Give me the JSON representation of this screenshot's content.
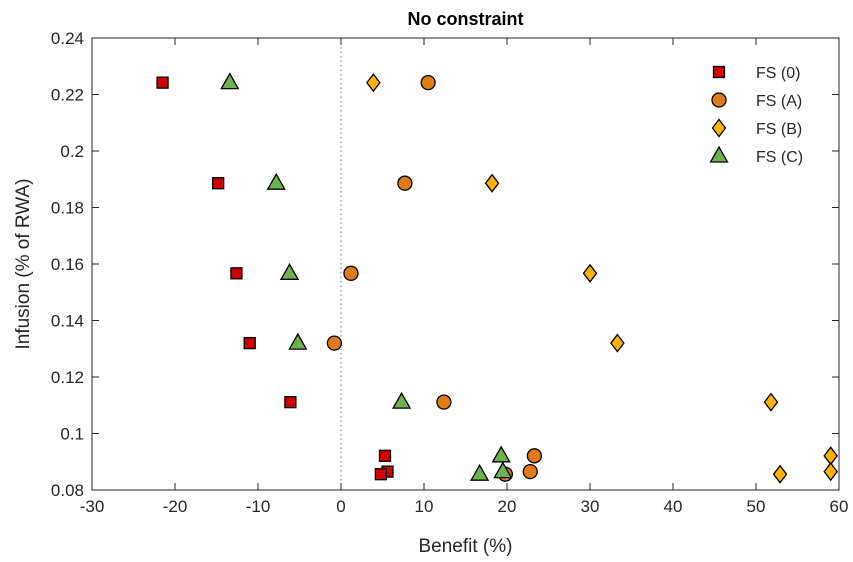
{
  "chart_data": {
    "type": "scatter",
    "title": "No constraint",
    "xlabel": "Benefit (%)",
    "ylabel": "Infusion (% of RWA)",
    "xlim": [
      -30,
      60
    ],
    "ylim": [
      0.08,
      0.24
    ],
    "xticks": [
      -30,
      -20,
      -10,
      0,
      10,
      20,
      30,
      40,
      50,
      60
    ],
    "yticks": [
      0.08,
      0.1,
      0.12,
      0.14,
      0.16,
      0.18,
      0.2,
      0.22,
      0.24
    ],
    "xtick_labels": [
      "-30",
      "-20",
      "-10",
      "0",
      "10",
      "20",
      "30",
      "40",
      "50",
      "60"
    ],
    "ytick_labels": [
      "0.08",
      "0.1",
      "0.12",
      "0.14",
      "0.16",
      "0.18",
      "0.2",
      "0.22",
      "0.24"
    ],
    "reference_line_x": 0,
    "grid": false,
    "legend_position": "top-right",
    "series": [
      {
        "name": "FS (0)",
        "marker": "square",
        "color": "#d10000",
        "points": [
          {
            "x": -21.5,
            "y": 0.2242
          },
          {
            "x": -14.8,
            "y": 0.1886
          },
          {
            "x": -12.6,
            "y": 0.1567
          },
          {
            "x": -11.0,
            "y": 0.132
          },
          {
            "x": -6.1,
            "y": 0.1111
          },
          {
            "x": 5.3,
            "y": 0.0921
          },
          {
            "x": 5.6,
            "y": 0.0865
          },
          {
            "x": 4.8,
            "y": 0.0856
          }
        ]
      },
      {
        "name": "FS (A)",
        "marker": "circle",
        "color": "#e07b17",
        "points": [
          {
            "x": 10.5,
            "y": 0.2242
          },
          {
            "x": 7.7,
            "y": 0.1886
          },
          {
            "x": 1.2,
            "y": 0.1567
          },
          {
            "x": -0.8,
            "y": 0.132
          },
          {
            "x": 12.4,
            "y": 0.1111
          },
          {
            "x": 23.3,
            "y": 0.0921
          },
          {
            "x": 22.8,
            "y": 0.0865
          },
          {
            "x": 19.8,
            "y": 0.0856
          }
        ]
      },
      {
        "name": "FS (B)",
        "marker": "diamond",
        "color": "#ffb300",
        "points": [
          {
            "x": 3.9,
            "y": 0.2242
          },
          {
            "x": 18.2,
            "y": 0.1886
          },
          {
            "x": 30.0,
            "y": 0.1567
          },
          {
            "x": 33.3,
            "y": 0.132
          },
          {
            "x": 51.8,
            "y": 0.1111
          },
          {
            "x": 59.0,
            "y": 0.0921
          },
          {
            "x": 59.0,
            "y": 0.0865
          },
          {
            "x": 52.9,
            "y": 0.0856
          }
        ]
      },
      {
        "name": "FS (C)",
        "marker": "triangle",
        "color": "#6fb04f",
        "points": [
          {
            "x": -13.4,
            "y": 0.2242
          },
          {
            "x": -7.8,
            "y": 0.1886
          },
          {
            "x": -6.2,
            "y": 0.1567
          },
          {
            "x": -5.2,
            "y": 0.132
          },
          {
            "x": 7.3,
            "y": 0.1111
          },
          {
            "x": 19.3,
            "y": 0.0921
          },
          {
            "x": 19.5,
            "y": 0.0865
          },
          {
            "x": 16.7,
            "y": 0.0856
          }
        ]
      }
    ]
  }
}
